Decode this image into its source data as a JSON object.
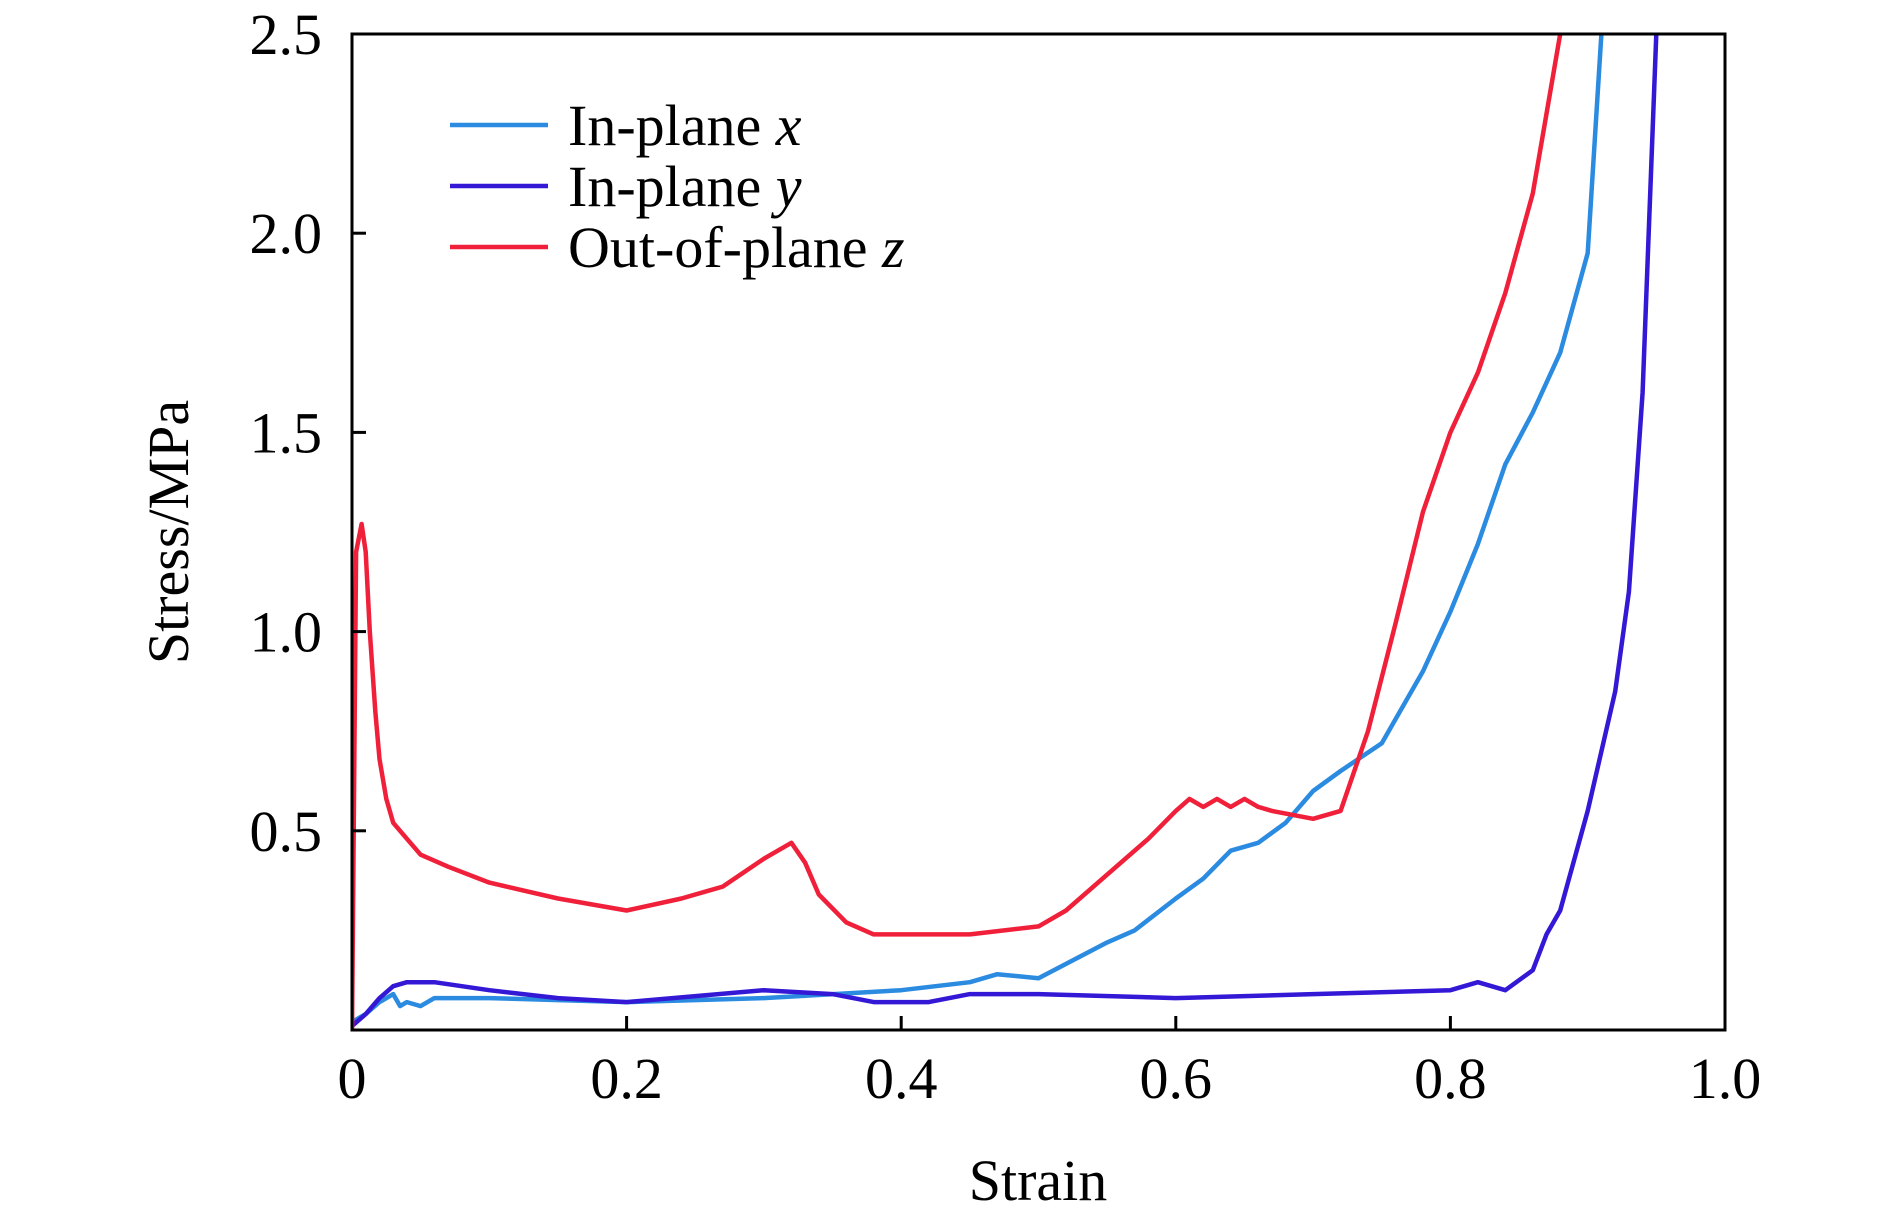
{
  "chart_data": {
    "type": "line",
    "xlabel": "Strain",
    "ylabel": "Stress/MPa",
    "xlim": [
      0,
      1.0
    ],
    "ylim": [
      0,
      2.5
    ],
    "xticks": [
      0,
      0.2,
      0.4,
      0.6,
      0.8,
      1.0
    ],
    "xtick_labels": [
      "0",
      "0.2",
      "0.4",
      "0.6",
      "0.8",
      "1.0"
    ],
    "yticks": [
      0.5,
      1.0,
      1.5,
      2.0,
      2.5
    ],
    "ytick_labels": [
      "0.5",
      "1.0",
      "1.5",
      "2.0",
      "2.5"
    ],
    "grid": false,
    "legend_position": "top-left",
    "series": [
      {
        "name": "In-plane x",
        "name_prefix": "In-plane ",
        "name_var": "x",
        "color": "#2b8be0",
        "x": [
          0.0,
          0.01,
          0.02,
          0.03,
          0.035,
          0.04,
          0.05,
          0.06,
          0.1,
          0.2,
          0.3,
          0.4,
          0.45,
          0.47,
          0.5,
          0.55,
          0.57,
          0.6,
          0.62,
          0.64,
          0.66,
          0.68,
          0.7,
          0.72,
          0.75,
          0.78,
          0.8,
          0.82,
          0.84,
          0.86,
          0.88,
          0.9,
          0.91
        ],
        "y": [
          0.02,
          0.04,
          0.07,
          0.09,
          0.06,
          0.07,
          0.06,
          0.08,
          0.08,
          0.07,
          0.08,
          0.1,
          0.12,
          0.14,
          0.13,
          0.22,
          0.25,
          0.33,
          0.38,
          0.45,
          0.47,
          0.52,
          0.6,
          0.65,
          0.72,
          0.9,
          1.05,
          1.22,
          1.42,
          1.55,
          1.7,
          1.95,
          2.5
        ]
      },
      {
        "name": "In-plane y",
        "name_prefix": "In-plane ",
        "name_var": "y",
        "color": "#3318d6",
        "x": [
          0.0,
          0.01,
          0.02,
          0.03,
          0.04,
          0.06,
          0.1,
          0.15,
          0.2,
          0.3,
          0.35,
          0.38,
          0.42,
          0.45,
          0.5,
          0.6,
          0.7,
          0.8,
          0.82,
          0.84,
          0.86,
          0.87,
          0.88,
          0.9,
          0.92,
          0.93,
          0.94,
          0.95
        ],
        "y": [
          0.01,
          0.04,
          0.08,
          0.11,
          0.12,
          0.12,
          0.1,
          0.08,
          0.07,
          0.1,
          0.09,
          0.07,
          0.07,
          0.09,
          0.09,
          0.08,
          0.09,
          0.1,
          0.12,
          0.1,
          0.15,
          0.24,
          0.3,
          0.55,
          0.85,
          1.1,
          1.6,
          2.5
        ]
      },
      {
        "name": "Out-of-plane z",
        "name_prefix": "Out-of-plane ",
        "name_var": "z",
        "color": "#f0203a",
        "x": [
          0.0,
          0.003,
          0.007,
          0.01,
          0.013,
          0.017,
          0.02,
          0.025,
          0.03,
          0.04,
          0.05,
          0.07,
          0.1,
          0.15,
          0.2,
          0.24,
          0.27,
          0.3,
          0.32,
          0.33,
          0.34,
          0.36,
          0.38,
          0.4,
          0.45,
          0.5,
          0.52,
          0.55,
          0.58,
          0.6,
          0.61,
          0.62,
          0.63,
          0.64,
          0.65,
          0.66,
          0.67,
          0.7,
          0.72,
          0.74,
          0.76,
          0.78,
          0.8,
          0.82,
          0.84,
          0.86,
          0.87,
          0.88
        ],
        "y": [
          0.0,
          1.2,
          1.27,
          1.2,
          1.0,
          0.8,
          0.68,
          0.58,
          0.52,
          0.48,
          0.44,
          0.41,
          0.37,
          0.33,
          0.3,
          0.33,
          0.36,
          0.43,
          0.47,
          0.42,
          0.34,
          0.27,
          0.24,
          0.24,
          0.24,
          0.26,
          0.3,
          0.39,
          0.48,
          0.55,
          0.58,
          0.56,
          0.58,
          0.56,
          0.58,
          0.56,
          0.55,
          0.53,
          0.55,
          0.75,
          1.02,
          1.3,
          1.5,
          1.65,
          1.85,
          2.1,
          2.3,
          2.5
        ]
      }
    ]
  }
}
